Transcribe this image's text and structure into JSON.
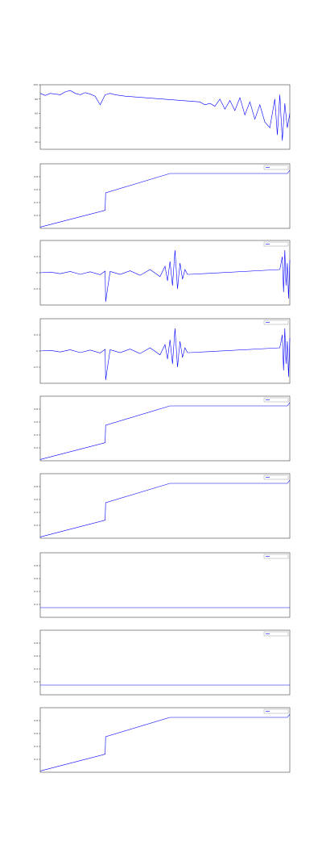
{
  "chart_data": [
    {
      "type": "line",
      "xlim": [
        0,
        100
      ],
      "ylim": [
        10,
        100
      ],
      "yticks": [
        20,
        40,
        60,
        80,
        100
      ],
      "series": [
        {
          "color": "#0000ff",
          "x": [
            0,
            2,
            4,
            6,
            8,
            10,
            12,
            14,
            16,
            18,
            20,
            22,
            24,
            26,
            28,
            30,
            32,
            34,
            64,
            66,
            68,
            70,
            72,
            74,
            76,
            78,
            80,
            82,
            84,
            86,
            88,
            90,
            92,
            94,
            95,
            96,
            97,
            98,
            99,
            100
          ],
          "values": [
            88,
            85,
            88,
            87,
            86,
            90,
            92,
            88,
            86,
            89,
            87,
            84,
            72,
            86,
            88,
            86,
            85,
            84,
            76,
            72,
            74,
            70,
            80,
            66,
            78,
            64,
            82,
            58,
            76,
            52,
            72,
            48,
            40,
            80,
            30,
            86,
            22,
            74,
            40,
            60
          ]
        }
      ]
    },
    {
      "type": "line",
      "xlim": [
        0,
        100
      ],
      "ylim": [
        0,
        1
      ],
      "yticks": [
        0.2,
        0.4,
        0.6,
        0.8
      ],
      "series": [
        {
          "color": "#0000ff",
          "x": [
            0,
            26,
            26.2,
            52,
            99,
            100
          ],
          "values": [
            0.02,
            0.28,
            0.55,
            0.85,
            0.85,
            0.9
          ]
        }
      ]
    },
    {
      "type": "line",
      "xlim": [
        0,
        100
      ],
      "ylim": [
        -1,
        1
      ],
      "yticks": [
        -0.5,
        0,
        0.5
      ],
      "series": [
        {
          "color": "#0000ff",
          "x": [
            0,
            4,
            8,
            12,
            16,
            20,
            24,
            26,
            26.2,
            28,
            32,
            36,
            40,
            44,
            48,
            50,
            51,
            52,
            53,
            54,
            55,
            56,
            57,
            58,
            59,
            60,
            96,
            97,
            97.5,
            98,
            98.5,
            99,
            99.5,
            100
          ],
          "values": [
            0,
            0.02,
            -0.03,
            0.04,
            -0.05,
            0.03,
            -0.06,
            0.05,
            -0.9,
            0.04,
            -0.05,
            0.06,
            -0.08,
            0.1,
            -0.12,
            0.2,
            -0.25,
            0.35,
            -0.4,
            0.7,
            -0.5,
            0.3,
            -0.2,
            0.1,
            -0.05,
            -0.05,
            0.1,
            0.5,
            -0.6,
            0.7,
            -0.4,
            0.3,
            -0.8,
            0.4
          ]
        }
      ]
    },
    {
      "type": "line",
      "xlim": [
        0,
        100
      ],
      "ylim": [
        -1,
        1
      ],
      "yticks": [
        -0.5,
        0,
        0.5
      ],
      "series": [
        {
          "color": "#0000ff",
          "x": [
            0,
            4,
            8,
            12,
            16,
            20,
            24,
            26,
            26.2,
            28,
            32,
            36,
            40,
            44,
            48,
            50,
            51,
            52,
            53,
            54,
            55,
            56,
            57,
            58,
            59,
            60,
            96,
            97,
            97.5,
            98,
            98.5,
            99,
            99.5,
            100
          ],
          "values": [
            0,
            0.02,
            -0.03,
            0.04,
            -0.05,
            0.03,
            -0.06,
            0.05,
            -0.9,
            0.04,
            -0.05,
            0.06,
            -0.08,
            0.1,
            -0.12,
            0.2,
            -0.25,
            0.35,
            -0.4,
            0.7,
            -0.5,
            0.3,
            -0.2,
            0.1,
            -0.05,
            -0.05,
            0.1,
            0.5,
            -0.6,
            0.7,
            -0.4,
            0.3,
            -0.8,
            0.4
          ]
        }
      ]
    },
    {
      "type": "line",
      "xlim": [
        0,
        100
      ],
      "ylim": [
        0,
        1
      ],
      "yticks": [
        0.2,
        0.4,
        0.6,
        0.8
      ],
      "series": [
        {
          "color": "#0000ff",
          "x": [
            0,
            26,
            26.2,
            52,
            99,
            100
          ],
          "values": [
            0.02,
            0.28,
            0.55,
            0.85,
            0.85,
            0.9
          ]
        }
      ]
    },
    {
      "type": "line",
      "xlim": [
        0,
        100
      ],
      "ylim": [
        0,
        1
      ],
      "yticks": [
        0.2,
        0.4,
        0.6,
        0.8
      ],
      "series": [
        {
          "color": "#0000ff",
          "x": [
            0,
            26,
            26.2,
            52,
            99,
            100
          ],
          "values": [
            0.02,
            0.28,
            0.55,
            0.85,
            0.85,
            0.9
          ]
        }
      ]
    },
    {
      "type": "line",
      "xlim": [
        0,
        100
      ],
      "ylim": [
        0,
        1
      ],
      "yticks": [
        0.2,
        0.4,
        0.6,
        0.8
      ],
      "series": [
        {
          "color": "#0000ff",
          "x": [
            0,
            100
          ],
          "values": [
            0.15,
            0.15
          ]
        }
      ]
    },
    {
      "type": "line",
      "xlim": [
        0,
        100
      ],
      "ylim": [
        0,
        1
      ],
      "yticks": [
        0.2,
        0.4,
        0.6,
        0.8
      ],
      "series": [
        {
          "color": "#0000ff",
          "x": [
            0,
            100
          ],
          "values": [
            0.15,
            0.15
          ]
        }
      ]
    },
    {
      "type": "line",
      "xlim": [
        0,
        100
      ],
      "ylim": [
        0,
        1
      ],
      "yticks": [
        0.2,
        0.4,
        0.6,
        0.8
      ],
      "series": [
        {
          "color": "#0000ff",
          "x": [
            0,
            26,
            26.2,
            52,
            99,
            100
          ],
          "values": [
            0.02,
            0.28,
            0.55,
            0.85,
            0.85,
            0.9
          ]
        }
      ]
    }
  ]
}
